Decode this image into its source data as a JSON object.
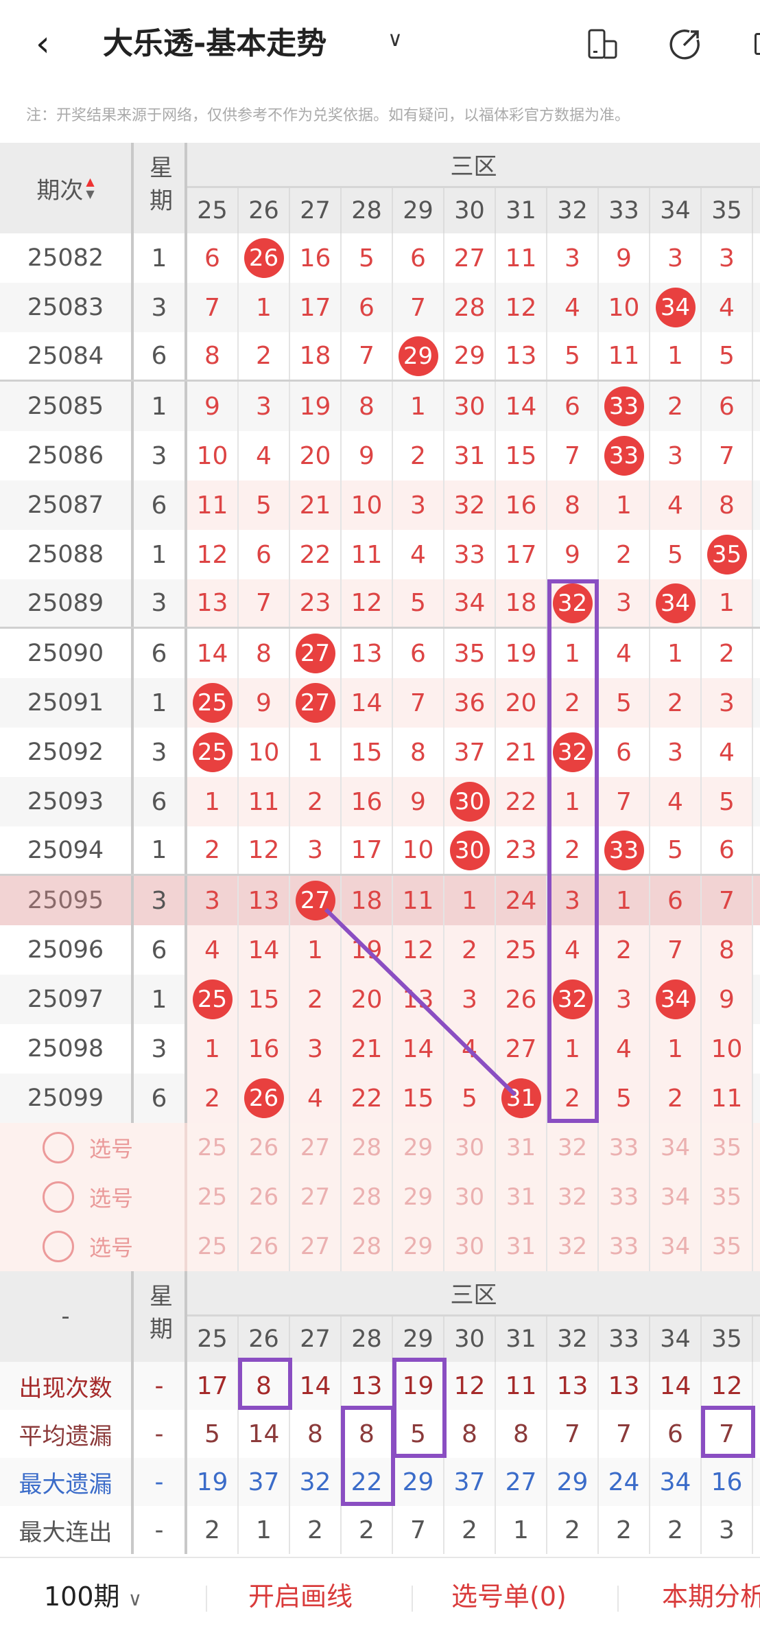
{
  "header": {
    "title": "大乐透-基本走势",
    "back_icon": "chevron-left-icon",
    "dropdown_icon": "chevron-down-icon",
    "icons": [
      "phone-layout-icon",
      "share-icon"
    ]
  },
  "note": "注：开奖结果来源于网络，仅供参考不作为兑奖依据。如有疑问，以福体彩官方数据为准。",
  "table": {
    "period_header": "期次",
    "weekday_header": "星期",
    "zone_header": "三区",
    "columns": [
      "25",
      "26",
      "27",
      "28",
      "29",
      "30",
      "31",
      "32",
      "33",
      "34",
      "35"
    ],
    "rows": [
      {
        "period": "25082",
        "weekday": "1",
        "values": [
          "6",
          "26",
          "16",
          "5",
          "6",
          "27",
          "11",
          "3",
          "9",
          "3",
          "3"
        ],
        "hits": [
          26
        ]
      },
      {
        "period": "25083",
        "weekday": "3",
        "values": [
          "7",
          "1",
          "17",
          "6",
          "7",
          "28",
          "12",
          "4",
          "10",
          "34",
          "4"
        ],
        "hits": [
          34
        ]
      },
      {
        "period": "25084",
        "weekday": "6",
        "values": [
          "8",
          "2",
          "18",
          "7",
          "29",
          "29",
          "13",
          "5",
          "11",
          "1",
          "5"
        ],
        "hits": [
          29
        ]
      },
      {
        "period": "25085",
        "weekday": "1",
        "values": [
          "9",
          "3",
          "19",
          "8",
          "1",
          "30",
          "14",
          "6",
          "33",
          "2",
          "6"
        ],
        "hits": [
          33
        ]
      },
      {
        "period": "25086",
        "weekday": "3",
        "values": [
          "10",
          "4",
          "20",
          "9",
          "2",
          "31",
          "15",
          "7",
          "33",
          "3",
          "7"
        ],
        "hits": [
          33
        ]
      },
      {
        "period": "25087",
        "weekday": "6",
        "values": [
          "11",
          "5",
          "21",
          "10",
          "3",
          "32",
          "16",
          "8",
          "1",
          "4",
          "8"
        ],
        "hits": []
      },
      {
        "period": "25088",
        "weekday": "1",
        "values": [
          "12",
          "6",
          "22",
          "11",
          "4",
          "33",
          "17",
          "9",
          "2",
          "5",
          "35"
        ],
        "hits": [
          35
        ]
      },
      {
        "period": "25089",
        "weekday": "3",
        "values": [
          "13",
          "7",
          "23",
          "12",
          "5",
          "34",
          "18",
          "32",
          "3",
          "34",
          "1"
        ],
        "hits": [
          32,
          34
        ]
      },
      {
        "period": "25090",
        "weekday": "6",
        "values": [
          "14",
          "8",
          "27",
          "13",
          "6",
          "35",
          "19",
          "1",
          "4",
          "1",
          "2"
        ],
        "hits": [
          27
        ]
      },
      {
        "period": "25091",
        "weekday": "1",
        "values": [
          "25",
          "9",
          "27",
          "14",
          "7",
          "36",
          "20",
          "2",
          "5",
          "2",
          "3"
        ],
        "hits": [
          25,
          27
        ]
      },
      {
        "period": "25092",
        "weekday": "3",
        "values": [
          "25",
          "10",
          "1",
          "15",
          "8",
          "37",
          "21",
          "32",
          "6",
          "3",
          "4"
        ],
        "hits": [
          25,
          32
        ]
      },
      {
        "period": "25093",
        "weekday": "6",
        "values": [
          "1",
          "11",
          "2",
          "16",
          "9",
          "30",
          "22",
          "1",
          "7",
          "4",
          "5"
        ],
        "hits": [
          30
        ]
      },
      {
        "period": "25094",
        "weekday": "1",
        "values": [
          "2",
          "12",
          "3",
          "17",
          "10",
          "30",
          "23",
          "2",
          "33",
          "5",
          "6"
        ],
        "hits": [
          30,
          33
        ]
      },
      {
        "period": "25095",
        "weekday": "3",
        "values": [
          "3",
          "13",
          "27",
          "18",
          "11",
          "1",
          "24",
          "3",
          "1",
          "6",
          "7"
        ],
        "hits": [
          27
        ],
        "highlighted": true
      },
      {
        "period": "25096",
        "weekday": "6",
        "values": [
          "4",
          "14",
          "1",
          "19",
          "12",
          "2",
          "25",
          "4",
          "2",
          "7",
          "8"
        ],
        "hits": []
      },
      {
        "period": "25097",
        "weekday": "1",
        "values": [
          "25",
          "15",
          "2",
          "20",
          "13",
          "3",
          "26",
          "32",
          "3",
          "34",
          "9"
        ],
        "hits": [
          25,
          32,
          34
        ]
      },
      {
        "period": "25098",
        "weekday": "3",
        "values": [
          "1",
          "16",
          "3",
          "21",
          "14",
          "4",
          "27",
          "1",
          "4",
          "1",
          "10"
        ],
        "hits": []
      },
      {
        "period": "25099",
        "weekday": "6",
        "values": [
          "2",
          "26",
          "4",
          "22",
          "15",
          "5",
          "31",
          "2",
          "5",
          "2",
          "11"
        ],
        "hits": [
          26,
          31
        ]
      }
    ],
    "select_rows": [
      {
        "label": "选号"
      },
      {
        "label": "选号"
      },
      {
        "label": "选号"
      }
    ]
  },
  "stats": {
    "corner": "-",
    "weekday_header": "星期",
    "zone_header": "三区",
    "rows": [
      {
        "label": "出现次数",
        "weekday": "-",
        "values": [
          "17",
          "8",
          "14",
          "13",
          "19",
          "12",
          "11",
          "13",
          "13",
          "14",
          "12"
        ],
        "color": "#a52a2a"
      },
      {
        "label": "平均遗漏",
        "weekday": "-",
        "values": [
          "5",
          "14",
          "8",
          "8",
          "5",
          "8",
          "8",
          "7",
          "7",
          "6",
          "7"
        ],
        "color": "#8b3a3a"
      },
      {
        "label": "最大遗漏",
        "weekday": "-",
        "values": [
          "19",
          "37",
          "32",
          "22",
          "29",
          "37",
          "27",
          "29",
          "24",
          "34",
          "16"
        ],
        "color": "#3b6cc9"
      },
      {
        "label": "最大连出",
        "weekday": "-",
        "values": [
          "2",
          "1",
          "2",
          "2",
          "7",
          "2",
          "1",
          "2",
          "2",
          "2",
          "3"
        ],
        "color": "#555555"
      }
    ]
  },
  "annotations": {
    "color": "#8a4ec2",
    "table_boxes": [
      {
        "column": "32",
        "from": "25089",
        "to": "25099"
      }
    ],
    "table_lines": [
      {
        "from_column": "27",
        "from_period": "25095",
        "to_column": "31",
        "to_period": "25099"
      }
    ],
    "stats_boxes": [
      {
        "column": "26",
        "rows": [
          "出现次数"
        ]
      },
      {
        "column": "29",
        "rows": [
          "出现次数",
          "平均遗漏"
        ]
      },
      {
        "column": "28",
        "rows": [
          "平均遗漏",
          "最大遗漏"
        ]
      },
      {
        "column": "35",
        "rows": [
          "平均遗漏"
        ]
      }
    ]
  },
  "footer": {
    "period_select": "100期",
    "draw_lines": "开启画线",
    "pick_list": "选号单(0)",
    "analysis": "本期分析"
  },
  "colors": {
    "accent": "#e8403f",
    "miss_number": "#dd4444",
    "annotation": "#8a4ec2"
  }
}
